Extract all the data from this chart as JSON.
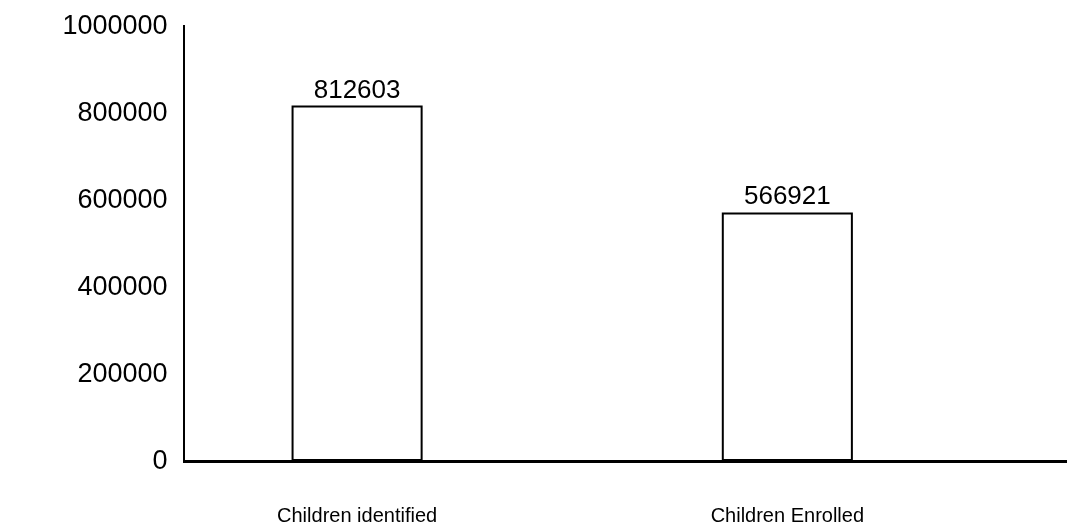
{
  "chart_data": {
    "type": "bar",
    "categories": [
      "Children identified",
      "Children Enrolled"
    ],
    "values": [
      812603,
      566921
    ],
    "color": "#ffffff",
    "ylim": [
      0,
      1000000
    ],
    "yticks": [
      0,
      200000,
      400000,
      600000,
      800000,
      1000000
    ],
    "data_labels": true,
    "legend": false
  }
}
